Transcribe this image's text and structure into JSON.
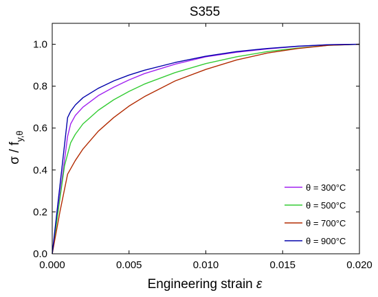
{
  "chart_data": {
    "type": "line",
    "title": "S355",
    "xlabel": "Engineering strain ",
    "xlabel_symbol": "ε",
    "ylabel": "σ / f",
    "ylabel_subscript": "y,θ",
    "xlim": [
      0.0,
      0.02
    ],
    "ylim": [
      0.0,
      1.1
    ],
    "x_ticks": [
      0.0,
      0.005,
      0.01,
      0.015,
      0.02
    ],
    "x_tick_labels": [
      "0.000",
      "0.005",
      "0.010",
      "0.015",
      "0.020"
    ],
    "y_ticks": [
      0.0,
      0.2,
      0.4,
      0.6,
      0.8,
      1.0
    ],
    "y_tick_labels": [
      "0.0",
      "0.2",
      "0.4",
      "0.6",
      "0.8",
      "1.0"
    ],
    "grid": false,
    "legend_position": "bottom-right",
    "series": [
      {
        "name": "θ = 300°C",
        "color": "#a020f0",
        "x": [
          0,
          0.001,
          0.0012,
          0.0015,
          0.002,
          0.003,
          0.004,
          0.005,
          0.006,
          0.008,
          0.01,
          0.012,
          0.014,
          0.016,
          0.018,
          0.02
        ],
        "y": [
          0,
          0.56,
          0.62,
          0.66,
          0.7,
          0.755,
          0.795,
          0.83,
          0.86,
          0.905,
          0.94,
          0.962,
          0.978,
          0.99,
          0.998,
          1.0
        ]
      },
      {
        "name": "θ = 500°C",
        "color": "#33cc33",
        "x": [
          0,
          0.0008,
          0.0012,
          0.0015,
          0.002,
          0.003,
          0.004,
          0.005,
          0.006,
          0.008,
          0.01,
          0.012,
          0.014,
          0.016,
          0.018,
          0.02
        ],
        "y": [
          0,
          0.42,
          0.53,
          0.57,
          0.62,
          0.685,
          0.735,
          0.775,
          0.81,
          0.865,
          0.908,
          0.94,
          0.965,
          0.982,
          0.995,
          1.0
        ]
      },
      {
        "name": "θ = 700°C",
        "color": "#b22a00",
        "x": [
          0,
          0.0005,
          0.001,
          0.0015,
          0.002,
          0.003,
          0.004,
          0.005,
          0.006,
          0.008,
          0.01,
          0.012,
          0.014,
          0.016,
          0.018,
          0.02
        ],
        "y": [
          0,
          0.2,
          0.38,
          0.445,
          0.5,
          0.585,
          0.65,
          0.705,
          0.75,
          0.825,
          0.88,
          0.925,
          0.958,
          0.98,
          0.995,
          1.0
        ]
      },
      {
        "name": "θ = 900°C",
        "color": "#0000aa",
        "x": [
          0,
          0.001,
          0.0012,
          0.0015,
          0.002,
          0.003,
          0.004,
          0.005,
          0.006,
          0.008,
          0.01,
          0.012,
          0.014,
          0.016,
          0.018,
          0.02
        ],
        "y": [
          0,
          0.65,
          0.68,
          0.71,
          0.745,
          0.79,
          0.825,
          0.853,
          0.876,
          0.913,
          0.943,
          0.965,
          0.98,
          0.991,
          0.998,
          1.0
        ]
      }
    ]
  }
}
